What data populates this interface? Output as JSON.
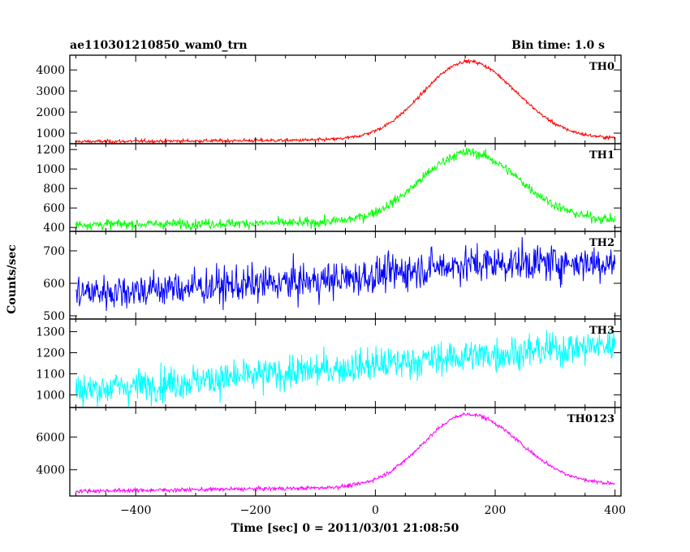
{
  "header": {
    "title": "ae110301210850_wam0_trn",
    "bin_time": "Bin time: 1.0 s"
  },
  "chart_data": {
    "type": "line",
    "title": "ae110301210850_wam0_trn",
    "xlabel": "Time [sec] 0 = 2011/03/01 21:08:50",
    "ylabel": "Counts/sec",
    "xlim": [
      -510,
      410
    ],
    "x_ticks": [
      -400,
      -200,
      0,
      200,
      400
    ],
    "x_start": -500,
    "x_end": 400,
    "x_step": 1,
    "grid": false,
    "panels": [
      {
        "label": "TH0",
        "color": "#ff0000",
        "ylim": [
          500,
          4700
        ],
        "y_ticks": [
          1000,
          2000,
          3000,
          4000
        ],
        "base_start": 600,
        "base_end": 750,
        "peak": 4450,
        "peak_time": 155,
        "rise_width": 75,
        "fall_width": 80,
        "noise": 40
      },
      {
        "label": "TH1",
        "color": "#00ff00",
        "ylim": [
          360,
          1260
        ],
        "y_ticks": [
          400,
          600,
          800,
          1000,
          1200
        ],
        "base_start": 430,
        "base_end": 470,
        "peak": 1180,
        "peak_time": 155,
        "rise_width": 80,
        "fall_width": 85,
        "noise": 25
      },
      {
        "label": "TH2",
        "color": "#0000ff",
        "ylim": [
          490,
          760
        ],
        "y_ticks": [
          500,
          600,
          700
        ],
        "base_start": 570,
        "base_end": 650,
        "peak": 680,
        "peak_time": 150,
        "rise_width": 100,
        "fall_width": 200,
        "noise": 28
      },
      {
        "label": "TH3",
        "color": "#00ffff",
        "ylim": [
          940,
          1360
        ],
        "y_ticks": [
          1000,
          1100,
          1200,
          1300
        ],
        "base_start": 1020,
        "base_end": 1230,
        "peak": 1240,
        "peak_time": 150,
        "rise_width": 150,
        "fall_width": 300,
        "noise": 40
      },
      {
        "label": "TH0123",
        "color": "#ff00ff",
        "ylim": [
          2400,
          7800
        ],
        "y_ticks": [
          4000,
          6000
        ],
        "base_start": 2700,
        "base_end": 3100,
        "peak": 7500,
        "peak_time": 155,
        "rise_width": 75,
        "fall_width": 85,
        "noise": 60
      }
    ]
  }
}
